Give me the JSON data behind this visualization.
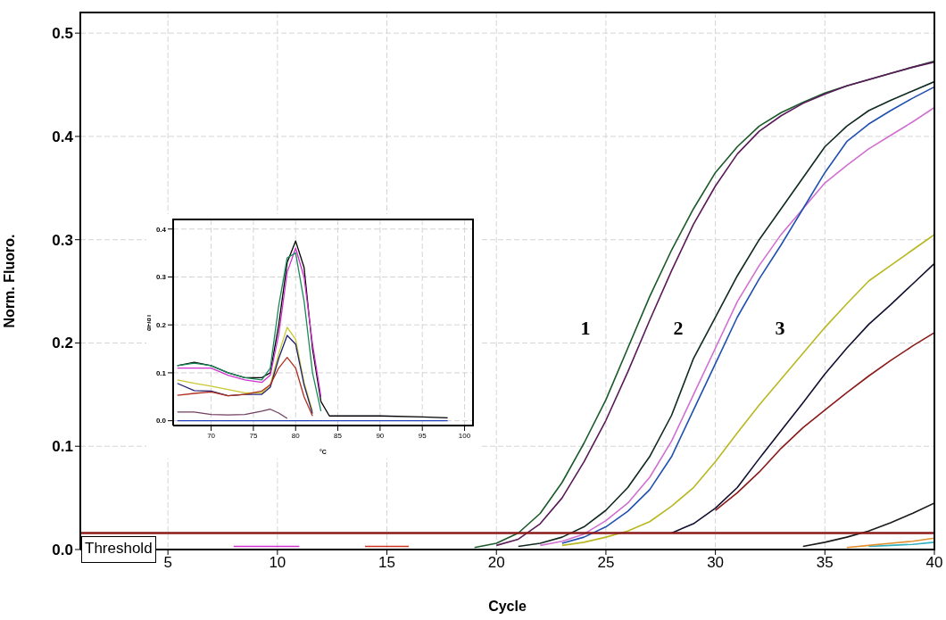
{
  "chart_data": [
    {
      "type": "line",
      "xlabel": "Cycle",
      "ylabel": "Norm. Fluoro.",
      "series": [
        {
          "color": "#1a5a2a",
          "x": [
            19,
            20,
            21,
            22,
            23,
            24,
            25,
            26,
            27,
            28,
            29,
            30,
            31,
            32,
            33,
            34,
            35,
            36,
            37,
            38,
            39,
            40
          ],
          "values": [
            0.002,
            0.006,
            0.016,
            0.035,
            0.065,
            0.103,
            0.145,
            0.195,
            0.245,
            0.29,
            0.33,
            0.365,
            0.39,
            0.41,
            0.423,
            0.433,
            0.442,
            0.449,
            0.455,
            0.461,
            0.467,
            0.473
          ]
        },
        {
          "color": "#5a1a5a",
          "x": [
            20,
            21,
            22,
            23,
            24,
            25,
            26,
            27,
            28,
            29,
            30,
            31,
            32,
            33,
            34,
            35,
            36,
            37,
            38,
            39,
            40
          ],
          "values": [
            0.004,
            0.01,
            0.025,
            0.05,
            0.085,
            0.125,
            0.172,
            0.222,
            0.27,
            0.315,
            0.352,
            0.383,
            0.405,
            0.42,
            0.432,
            0.441,
            0.449,
            0.455,
            0.461,
            0.467,
            0.472
          ]
        },
        {
          "color": "#102a20",
          "x": [
            21,
            22,
            23,
            24,
            25,
            26,
            27,
            28,
            29,
            30,
            31,
            32,
            33,
            34,
            35,
            36,
            37,
            38,
            39,
            40
          ],
          "values": [
            0.003,
            0.006,
            0.012,
            0.022,
            0.038,
            0.06,
            0.09,
            0.13,
            0.185,
            0.225,
            0.265,
            0.3,
            0.33,
            0.36,
            0.39,
            0.41,
            0.425,
            0.435,
            0.444,
            0.453
          ]
        },
        {
          "color": "#d070d0",
          "x": [
            22,
            23,
            24,
            25,
            26,
            27,
            28,
            29,
            30,
            31,
            32,
            33,
            34,
            35,
            36,
            37,
            38,
            39,
            40
          ],
          "values": [
            0.004,
            0.008,
            0.015,
            0.028,
            0.045,
            0.07,
            0.105,
            0.15,
            0.195,
            0.24,
            0.275,
            0.305,
            0.33,
            0.355,
            0.372,
            0.388,
            0.401,
            0.414,
            0.428
          ]
        },
        {
          "color": "#2050b0",
          "x": [
            23,
            24,
            25,
            26,
            27,
            28,
            29,
            30,
            31,
            32,
            33,
            34,
            35,
            36,
            37,
            38,
            39,
            40
          ],
          "values": [
            0.006,
            0.012,
            0.022,
            0.037,
            0.058,
            0.09,
            0.135,
            0.18,
            0.225,
            0.262,
            0.295,
            0.33,
            0.365,
            0.395,
            0.412,
            0.425,
            0.437,
            0.448
          ]
        },
        {
          "color": "#b8b820",
          "x": [
            23,
            24,
            25,
            26,
            27,
            28,
            29,
            30,
            31,
            32,
            33,
            34,
            35,
            36,
            37,
            38,
            39,
            40
          ],
          "values": [
            0.004,
            0.007,
            0.012,
            0.018,
            0.027,
            0.042,
            0.06,
            0.085,
            0.113,
            0.14,
            0.165,
            0.19,
            0.215,
            0.238,
            0.26,
            0.275,
            0.29,
            0.305
          ]
        },
        {
          "color": "#101030",
          "x": [
            28,
            29,
            30,
            31,
            32,
            33,
            34,
            35,
            36,
            37,
            38,
            39,
            40
          ],
          "values": [
            0.016,
            0.025,
            0.04,
            0.06,
            0.088,
            0.115,
            0.142,
            0.17,
            0.195,
            0.218,
            0.237,
            0.257,
            0.277
          ]
        },
        {
          "color": "#8b1a1a",
          "x": [
            30,
            31,
            32,
            33,
            34,
            35,
            36,
            37,
            38,
            39,
            40
          ],
          "values": [
            0.038,
            0.055,
            0.075,
            0.098,
            0.118,
            0.135,
            0.152,
            0.168,
            0.183,
            0.197,
            0.21
          ]
        },
        {
          "color": "#1a1a1a",
          "x": [
            34,
            35,
            36,
            37,
            38,
            39,
            40
          ],
          "values": [
            0.003,
            0.007,
            0.012,
            0.018,
            0.026,
            0.035,
            0.045
          ]
        },
        {
          "color": "#30b0c0",
          "x": [
            37,
            38,
            39,
            40
          ],
          "values": [
            0.003,
            0.004,
            0.005,
            0.007
          ]
        },
        {
          "color": "#e09030",
          "x": [
            36,
            37,
            38,
            39,
            40
          ],
          "values": [
            0.002,
            0.004,
            0.006,
            0.008,
            0.011
          ]
        },
        {
          "color": "#d030d0",
          "x": [
            8,
            9,
            10,
            11
          ],
          "values": [
            0.003,
            0.003,
            0.003,
            0.003
          ]
        },
        {
          "color": "#d03020",
          "x": [
            14,
            15,
            16
          ],
          "values": [
            0.003,
            0.003,
            0.003
          ]
        }
      ],
      "xlim": [
        1,
        40
      ],
      "xticks": [
        5,
        10,
        15,
        20,
        25,
        30,
        35,
        40
      ],
      "ylim": [
        0,
        0.52
      ],
      "yticks": [
        {
          "value": 0,
          "label": "0.0"
        },
        {
          "value": 0.1,
          "label": "0.1"
        },
        {
          "value": 0.2,
          "label": "0.2"
        },
        {
          "value": 0.3,
          "label": "0.3"
        },
        {
          "value": 0.4,
          "label": "0.4"
        },
        {
          "value": 0.5,
          "label": "0.5"
        }
      ],
      "grid": true,
      "ref_lines": [
        {
          "axis": "y",
          "value": 0.016,
          "label": "Threshold",
          "color": "#8b1a1a"
        }
      ],
      "annotations": [
        "1",
        "2",
        "3"
      ]
    },
    {
      "type": "line",
      "xlabel": "°C",
      "ylabel": "dF/dT",
      "x": [
        66,
        68,
        70,
        72,
        74,
        76,
        77,
        78,
        79,
        80,
        81,
        82,
        83,
        84,
        86,
        90,
        95,
        98
      ],
      "series": [
        {
          "color": "#000000",
          "values": [
            0.115,
            0.122,
            0.115,
            0.1,
            0.09,
            0.09,
            0.1,
            0.2,
            0.33,
            0.375,
            0.32,
            0.15,
            0.04,
            0.01,
            0.01,
            0.01,
            0.008,
            0.006
          ]
        },
        {
          "color": "#d030d0",
          "values": [
            0.11,
            0.11,
            0.11,
            0.095,
            0.085,
            0.08,
            0.095,
            0.18,
            0.31,
            0.36,
            0.3,
            0.16,
            0.05,
            null,
            null,
            null,
            null,
            null
          ]
        },
        {
          "color": "#1a8a5a",
          "values": [
            0.115,
            0.12,
            0.115,
            0.1,
            0.09,
            0.085,
            0.11,
            0.24,
            0.34,
            0.35,
            0.25,
            0.1,
            0.02,
            null,
            null,
            null,
            null,
            null
          ]
        },
        {
          "color": "#c8c830",
          "values": [
            0.085,
            0.078,
            0.072,
            0.065,
            0.058,
            0.058,
            0.075,
            0.14,
            0.195,
            0.17,
            0.08,
            0.02,
            null,
            null,
            null,
            null,
            null,
            null
          ]
        },
        {
          "color": "#202070",
          "values": [
            0.078,
            0.063,
            0.062,
            0.052,
            0.055,
            0.055,
            0.07,
            0.13,
            0.178,
            0.16,
            0.075,
            0.015,
            null,
            null,
            null,
            null,
            null,
            null
          ]
        },
        {
          "color": "#b03020",
          "values": [
            0.053,
            0.057,
            0.06,
            0.052,
            0.055,
            0.062,
            0.075,
            0.11,
            0.132,
            0.11,
            0.05,
            0.01,
            null,
            null,
            null,
            null,
            null,
            null
          ]
        },
        {
          "color": "#704060",
          "values": [
            0.018,
            0.018,
            0.013,
            0.012,
            0.013,
            0.02,
            0.024,
            0.016,
            0.005,
            null,
            null,
            null,
            null,
            null,
            null,
            null,
            null,
            null
          ]
        },
        {
          "color": "#2040c0",
          "values": [
            0,
            0,
            0,
            0,
            0,
            0,
            0,
            0,
            0,
            0,
            0,
            0,
            0,
            0,
            0,
            0,
            0,
            0
          ]
        }
      ],
      "xlim": [
        65.5,
        101
      ],
      "xticks": [
        70,
        75,
        80,
        85,
        90,
        95,
        100
      ],
      "ylim": [
        -0.01,
        0.42
      ],
      "yticks": [
        {
          "value": 0,
          "label": "0.0"
        },
        {
          "value": 0.1,
          "label": "0.1"
        },
        {
          "value": 0.2,
          "label": "0.2"
        },
        {
          "value": 0.3,
          "label": "0.3"
        },
        {
          "value": 0.4,
          "label": "0.4"
        }
      ],
      "grid": true
    }
  ]
}
